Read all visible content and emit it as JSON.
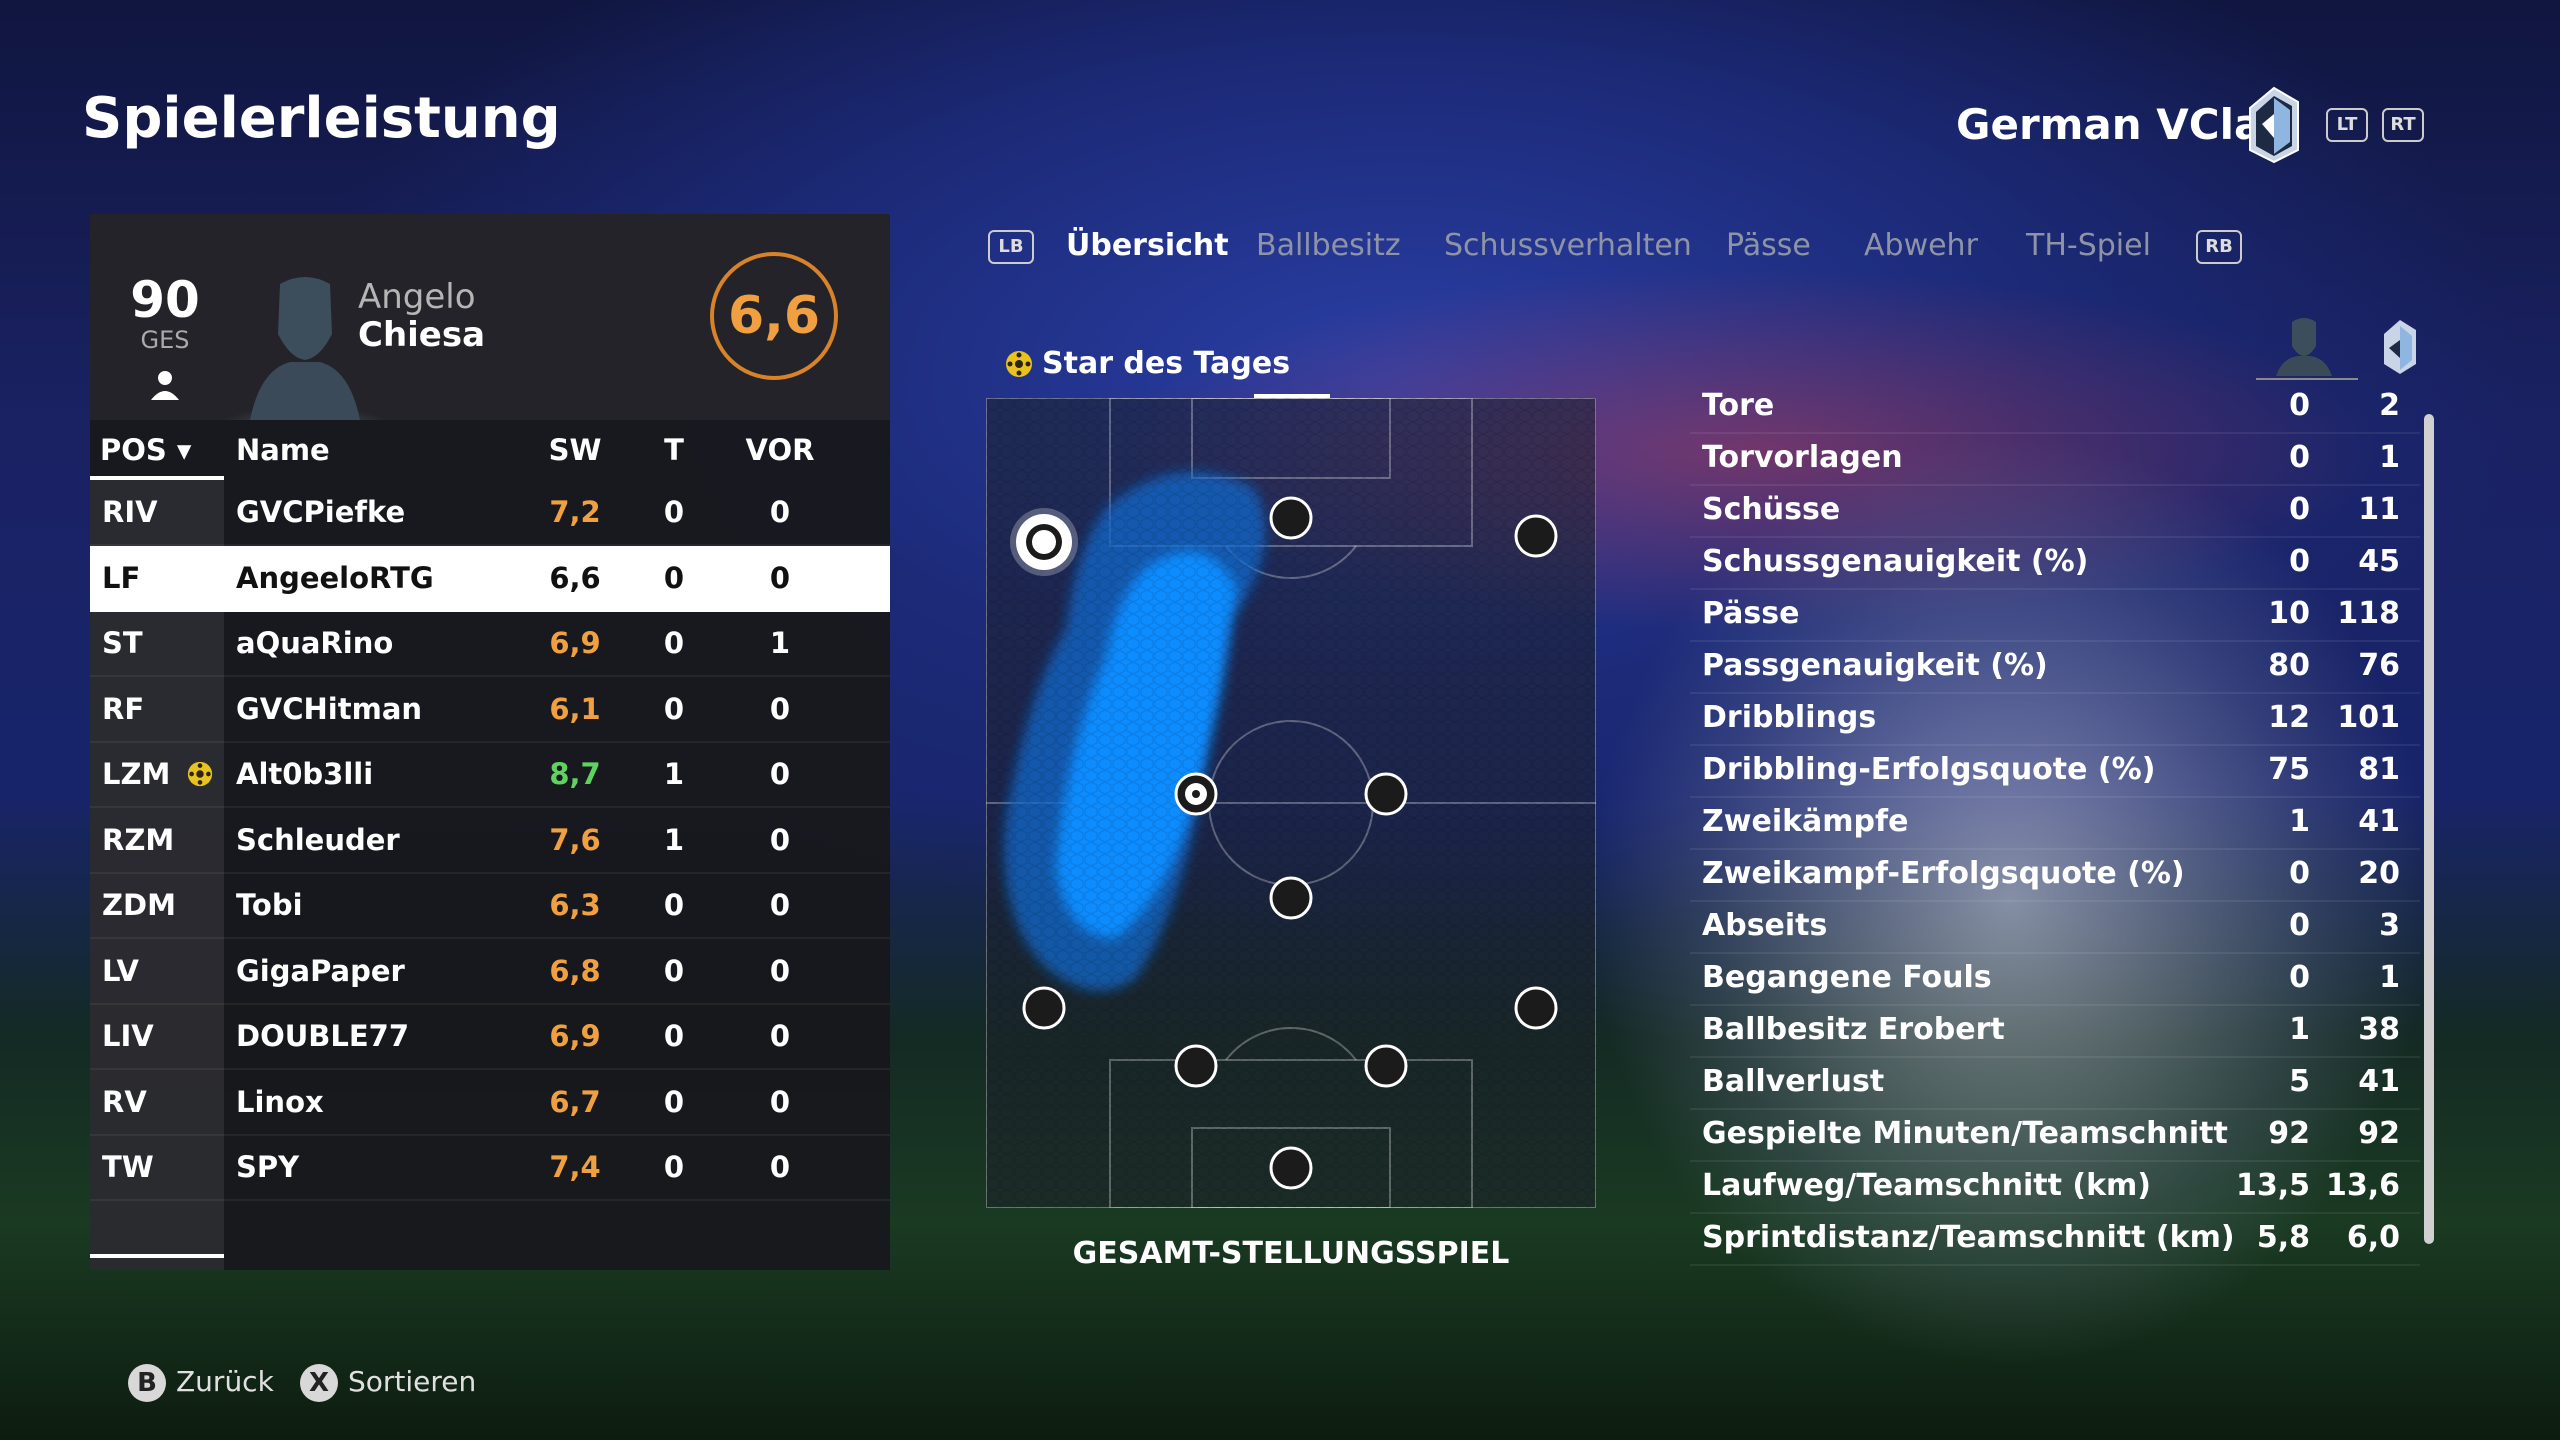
{
  "page_title": "Spielerleistung",
  "team_name": "German VClan",
  "trigger_buttons": {
    "lt": "LT",
    "rt": "RT",
    "lb": "LB",
    "rb": "RB"
  },
  "player": {
    "overall": "90",
    "overall_label": "GES",
    "first_name": "Angelo",
    "last_name": "Chiesa",
    "match_rating": "6,6",
    "rating_color": "#d8822a"
  },
  "table": {
    "headers": {
      "pos": "POS ▾",
      "name": "Name",
      "sw": "SW",
      "t": "T",
      "vor": "VOR"
    },
    "rows": [
      {
        "pos": "RIV",
        "name": "GVCPiefke",
        "sw": "7,2",
        "t": "0",
        "vor": "0"
      },
      {
        "pos": "LF",
        "name": "AngeeloRTG",
        "sw": "6,6",
        "t": "0",
        "vor": "0"
      },
      {
        "pos": "ST",
        "name": "aQuaRino",
        "sw": "6,9",
        "t": "0",
        "vor": "1"
      },
      {
        "pos": "RF",
        "name": "GVCHitman",
        "sw": "6,1",
        "t": "0",
        "vor": "0"
      },
      {
        "pos": "LZM",
        "name": "Alt0b3lli",
        "sw": "8,7",
        "t": "1",
        "vor": "0"
      },
      {
        "pos": "RZM",
        "name": "Schleuder",
        "sw": "7,6",
        "t": "1",
        "vor": "0"
      },
      {
        "pos": "ZDM",
        "name": "Tobi",
        "sw": "6,3",
        "t": "0",
        "vor": "0"
      },
      {
        "pos": "LV",
        "name": "GigaPaper",
        "sw": "6,8",
        "t": "0",
        "vor": "0"
      },
      {
        "pos": "LIV",
        "name": "DOUBLE77",
        "sw": "6,9",
        "t": "0",
        "vor": "0"
      },
      {
        "pos": "RV",
        "name": "Linox",
        "sw": "6,7",
        "t": "0",
        "vor": "0"
      },
      {
        "pos": "TW",
        "name": "SPY",
        "sw": "7,4",
        "t": "0",
        "vor": "0"
      }
    ],
    "rating_colors": {
      "orange": "#f0a040",
      "green": "#5fd35f",
      "dark": "#111111"
    }
  },
  "tabs": [
    "Übersicht",
    "Ballbesitz",
    "Schussverhalten",
    "Pässe",
    "Abwehr",
    "TH-Spiel"
  ],
  "active_tab": "Übersicht",
  "star_of_day_label": "Star des Tages",
  "heatmap_caption": "GESAMT-STELLUNGSSPIEL",
  "heatmap_color": "#0a8cff",
  "stats": [
    {
      "label": "Tore",
      "player": "0",
      "team": "2"
    },
    {
      "label": "Torvorlagen",
      "player": "0",
      "team": "1"
    },
    {
      "label": "Schüsse",
      "player": "0",
      "team": "11"
    },
    {
      "label": "Schussgenauigkeit (%)",
      "player": "0",
      "team": "45"
    },
    {
      "label": "Pässe",
      "player": "10",
      "team": "118"
    },
    {
      "label": "Passgenauigkeit (%)",
      "player": "80",
      "team": "76"
    },
    {
      "label": "Dribblings",
      "player": "12",
      "team": "101"
    },
    {
      "label": "Dribbling-Erfolgsquote (%)",
      "player": "75",
      "team": "81"
    },
    {
      "label": "Zweikämpfe",
      "player": "1",
      "team": "41"
    },
    {
      "label": "Zweikampf-Erfolgsquote (%)",
      "player": "0",
      "team": "20"
    },
    {
      "label": "Abseits",
      "player": "0",
      "team": "3"
    },
    {
      "label": "Begangene Fouls",
      "player": "0",
      "team": "1"
    },
    {
      "label": "Ballbesitz Erobert",
      "player": "1",
      "team": "38"
    },
    {
      "label": "Ballverlust",
      "player": "5",
      "team": "41"
    },
    {
      "label": "Gespielte Minuten/Teamschnitt",
      "player": "92",
      "team": "92"
    },
    {
      "label": "Laufweg/Teamschnitt (km)",
      "player": "13,5",
      "team": "13,6"
    },
    {
      "label": "Sprintdistanz/Teamschnitt (km)",
      "player": "5,8",
      "team": "6,0"
    }
  ],
  "footer": {
    "back_button": "B",
    "back_label": "Zurück",
    "sort_button": "X",
    "sort_label": "Sortieren"
  }
}
